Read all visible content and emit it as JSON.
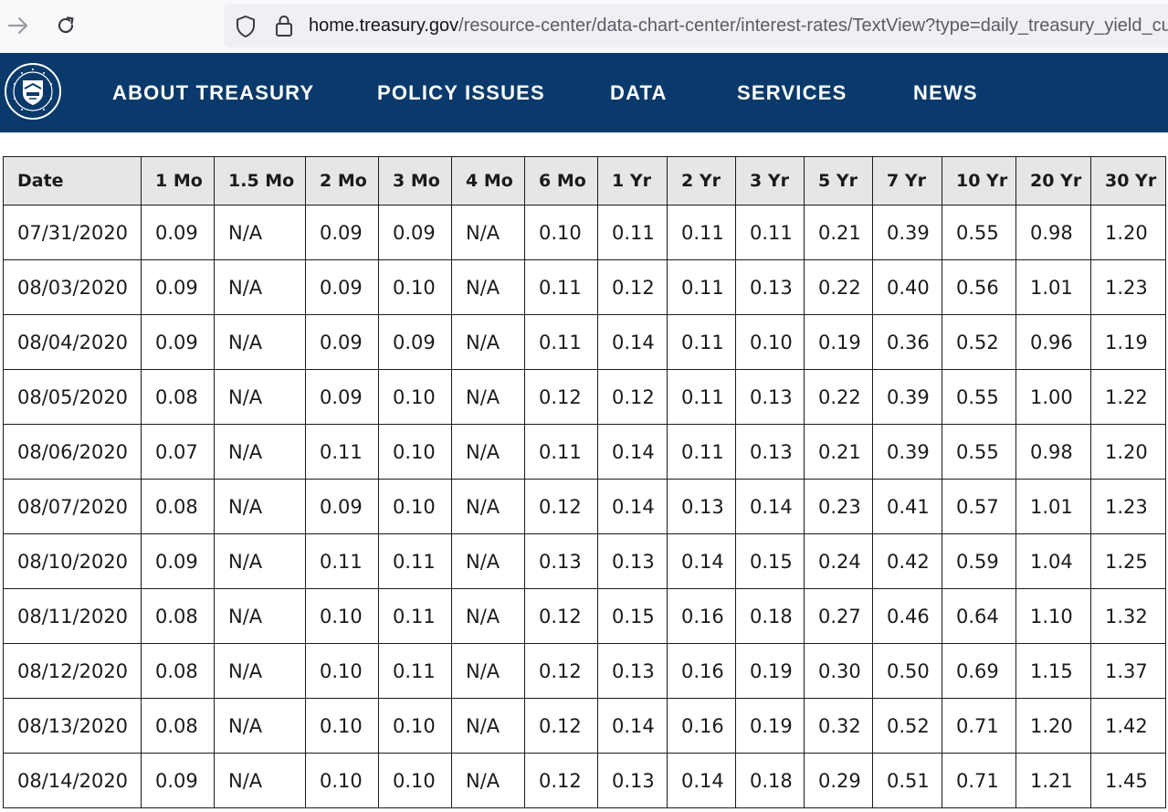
{
  "browser": {
    "url_host": "home.treasury.gov",
    "url_path": "/resource-center/data-chart-center/interest-rates/TextView?type=daily_treasury_yield_curve"
  },
  "nav": {
    "items": [
      "ABOUT TREASURY",
      "POLICY ISSUES",
      "DATA",
      "SERVICES",
      "NEWS"
    ]
  },
  "table": {
    "headers": [
      "Date",
      "1 Mo",
      "1.5 Mo",
      "2 Mo",
      "3 Mo",
      "4 Mo",
      "6 Mo",
      "1 Yr",
      "2 Yr",
      "3 Yr",
      "5 Yr",
      "7 Yr",
      "10 Yr",
      "20 Yr",
      "30 Yr"
    ],
    "rows": [
      [
        "07/31/2020",
        "0.09",
        "N/A",
        "0.09",
        "0.09",
        "N/A",
        "0.10",
        "0.11",
        "0.11",
        "0.11",
        "0.21",
        "0.39",
        "0.55",
        "0.98",
        "1.20"
      ],
      [
        "08/03/2020",
        "0.09",
        "N/A",
        "0.09",
        "0.10",
        "N/A",
        "0.11",
        "0.12",
        "0.11",
        "0.13",
        "0.22",
        "0.40",
        "0.56",
        "1.01",
        "1.23"
      ],
      [
        "08/04/2020",
        "0.09",
        "N/A",
        "0.09",
        "0.09",
        "N/A",
        "0.11",
        "0.14",
        "0.11",
        "0.10",
        "0.19",
        "0.36",
        "0.52",
        "0.96",
        "1.19"
      ],
      [
        "08/05/2020",
        "0.08",
        "N/A",
        "0.09",
        "0.10",
        "N/A",
        "0.12",
        "0.12",
        "0.11",
        "0.13",
        "0.22",
        "0.39",
        "0.55",
        "1.00",
        "1.22"
      ],
      [
        "08/06/2020",
        "0.07",
        "N/A",
        "0.11",
        "0.10",
        "N/A",
        "0.11",
        "0.14",
        "0.11",
        "0.13",
        "0.21",
        "0.39",
        "0.55",
        "0.98",
        "1.20"
      ],
      [
        "08/07/2020",
        "0.08",
        "N/A",
        "0.09",
        "0.10",
        "N/A",
        "0.12",
        "0.14",
        "0.13",
        "0.14",
        "0.23",
        "0.41",
        "0.57",
        "1.01",
        "1.23"
      ],
      [
        "08/10/2020",
        "0.09",
        "N/A",
        "0.11",
        "0.11",
        "N/A",
        "0.13",
        "0.13",
        "0.14",
        "0.15",
        "0.24",
        "0.42",
        "0.59",
        "1.04",
        "1.25"
      ],
      [
        "08/11/2020",
        "0.08",
        "N/A",
        "0.10",
        "0.11",
        "N/A",
        "0.12",
        "0.15",
        "0.16",
        "0.18",
        "0.27",
        "0.46",
        "0.64",
        "1.10",
        "1.32"
      ],
      [
        "08/12/2020",
        "0.08",
        "N/A",
        "0.10",
        "0.11",
        "N/A",
        "0.12",
        "0.13",
        "0.16",
        "0.19",
        "0.30",
        "0.50",
        "0.69",
        "1.15",
        "1.37"
      ],
      [
        "08/13/2020",
        "0.08",
        "N/A",
        "0.10",
        "0.10",
        "N/A",
        "0.12",
        "0.14",
        "0.16",
        "0.19",
        "0.32",
        "0.52",
        "0.71",
        "1.20",
        "1.42"
      ],
      [
        "08/14/2020",
        "0.09",
        "N/A",
        "0.10",
        "0.10",
        "N/A",
        "0.12",
        "0.13",
        "0.14",
        "0.18",
        "0.29",
        "0.51",
        "0.71",
        "1.21",
        "1.45"
      ]
    ]
  }
}
